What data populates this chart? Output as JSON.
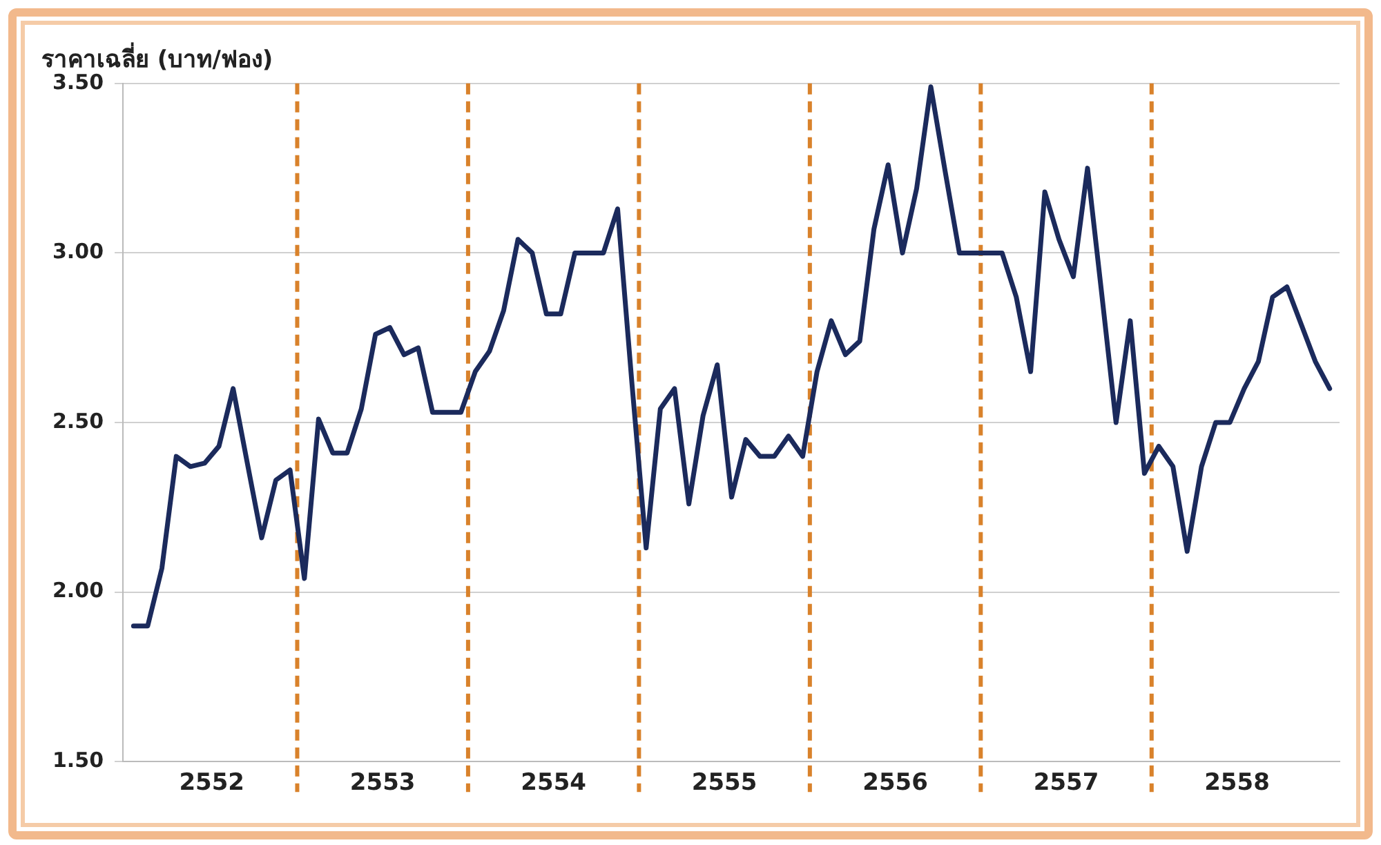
{
  "chart_data": {
    "type": "line",
    "ylabel": "ราคาเฉลี่ย (บาท/ฟอง)",
    "x": [
      2552.042,
      2552.125,
      2552.208,
      2552.292,
      2552.375,
      2552.458,
      2552.542,
      2552.625,
      2552.708,
      2552.792,
      2552.875,
      2552.958,
      2553.042,
      2553.125,
      2553.208,
      2553.292,
      2553.375,
      2553.458,
      2553.542,
      2553.625,
      2553.708,
      2553.792,
      2553.875,
      2553.958,
      2554.042,
      2554.125,
      2554.208,
      2554.292,
      2554.375,
      2554.458,
      2554.542,
      2554.625,
      2554.708,
      2554.792,
      2554.875,
      2554.958,
      2555.042,
      2555.125,
      2555.208,
      2555.292,
      2555.375,
      2555.458,
      2555.542,
      2555.625,
      2555.708,
      2555.792,
      2555.875,
      2555.958,
      2556.042,
      2556.125,
      2556.208,
      2556.292,
      2556.375,
      2556.458,
      2556.542,
      2556.625,
      2556.708,
      2556.792,
      2556.875,
      2556.958,
      2557.042,
      2557.125,
      2557.208,
      2557.292,
      2557.375,
      2557.458,
      2557.542,
      2557.625,
      2557.708,
      2557.792,
      2557.875,
      2557.958,
      2558.042,
      2558.125,
      2558.208,
      2558.292,
      2558.375,
      2558.458,
      2558.542,
      2558.625,
      2558.708,
      2558.792,
      2558.875,
      2558.958,
      2559.042
    ],
    "series": [
      {
        "color": "#1b2a5c",
        "values": [
          1.9,
          1.9,
          2.07,
          2.4,
          2.37,
          2.38,
          2.43,
          2.6,
          2.38,
          2.16,
          2.33,
          2.36,
          2.04,
          2.51,
          2.41,
          2.41,
          2.54,
          2.76,
          2.78,
          2.7,
          2.72,
          2.53,
          2.53,
          2.53,
          2.65,
          2.71,
          2.83,
          3.04,
          3.0,
          2.82,
          2.82,
          3.0,
          3.0,
          3.0,
          3.13,
          2.62,
          2.13,
          2.54,
          2.6,
          2.26,
          2.52,
          2.67,
          2.28,
          2.45,
          2.4,
          2.4,
          2.46,
          2.4,
          2.65,
          2.8,
          2.7,
          2.74,
          3.07,
          3.26,
          3.0,
          3.19,
          3.49,
          3.24,
          3.0,
          3.0,
          3.0,
          3.0,
          2.87,
          2.65,
          3.18,
          3.04,
          2.93,
          3.25,
          2.88,
          2.5,
          2.8,
          2.35,
          2.43,
          2.37,
          2.12,
          2.37,
          2.5,
          2.5,
          2.6,
          2.68,
          2.87,
          2.9,
          2.79,
          2.68,
          2.6
        ]
      }
    ],
    "xlim": [
      2551.98,
      2559.1
    ],
    "xticks": [
      {
        "value": 2552.5,
        "label": "2552"
      },
      {
        "value": 2553.5,
        "label": "2553"
      },
      {
        "value": 2554.5,
        "label": "2554"
      },
      {
        "value": 2555.5,
        "label": "2555"
      },
      {
        "value": 2556.5,
        "label": "2556"
      },
      {
        "value": 2557.5,
        "label": "2557"
      },
      {
        "value": 2558.5,
        "label": "2558"
      }
    ],
    "ylim": [
      1.5,
      3.5
    ],
    "yticks": [
      {
        "value": 1.5,
        "label": "1.50"
      },
      {
        "value": 2,
        "label": "2.00"
      },
      {
        "value": 2.5,
        "label": "2.50"
      },
      {
        "value": 3,
        "label": "3.00"
      },
      {
        "value": 3.5,
        "label": "3.50"
      }
    ],
    "grid": "y",
    "legend": false,
    "marker": "none",
    "line_style": "solid",
    "ref_lines": [
      {
        "axis": "x",
        "value": 2553,
        "color": "#d9822b",
        "line_style": "dashed"
      },
      {
        "axis": "x",
        "value": 2554,
        "color": "#d9822b",
        "line_style": "dashed"
      },
      {
        "axis": "x",
        "value": 2555,
        "color": "#d9822b",
        "line_style": "dashed"
      },
      {
        "axis": "x",
        "value": 2556,
        "color": "#d9822b",
        "line_style": "dashed"
      },
      {
        "axis": "x",
        "value": 2557,
        "color": "#d9822b",
        "line_style": "dashed"
      },
      {
        "axis": "x",
        "value": 2558,
        "color": "#d9822b",
        "line_style": "dashed"
      }
    ]
  }
}
